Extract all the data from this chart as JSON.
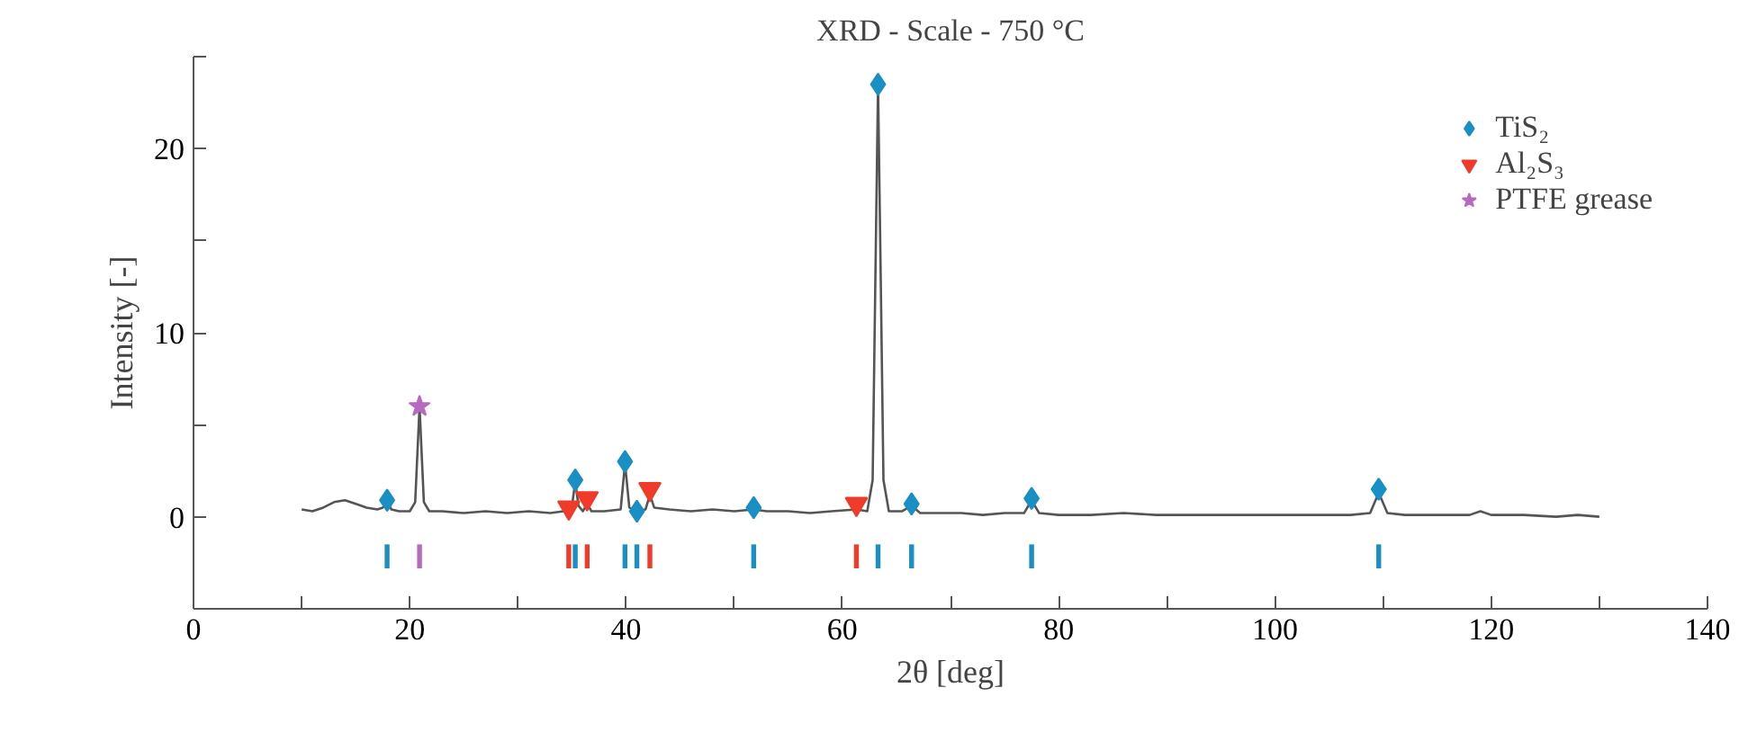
{
  "chart_data": {
    "type": "line",
    "title": "XRD - Scale - 750 °C",
    "xlabel": "2θ [deg]",
    "ylabel": "Intensity [-]",
    "xlim": [
      0,
      140
    ],
    "ylim": [
      -5,
      25
    ],
    "xticks": [
      0,
      {
        "value": 10,
        "label": null
      },
      20,
      {
        "value": 30,
        "label": null
      },
      40,
      {
        "value": 50,
        "label": null
      },
      60,
      {
        "value": 70,
        "label": null
      },
      80,
      {
        "value": 90,
        "label": null
      },
      100,
      {
        "value": 110,
        "label": null
      },
      120,
      {
        "value": 130,
        "label": null
      },
      140
    ],
    "yticks": [
      {
        "value": -5,
        "label": null
      },
      0,
      {
        "value": 5,
        "label": null
      },
      10,
      {
        "value": 15,
        "label": null
      },
      20,
      {
        "value": 25,
        "label": null
      }
    ],
    "grid": false,
    "legend": "top right",
    "series": [
      {
        "color": "#555555",
        "x": [
          10,
          11,
          12,
          13,
          14,
          15,
          16,
          17,
          17.5,
          17.9,
          18.3,
          19,
          20,
          20.5,
          20.9,
          21.3,
          21.8,
          23,
          25,
          27,
          29,
          31,
          33,
          34.2,
          34.7,
          35.0,
          35.3,
          35.6,
          36,
          36.4,
          36.8,
          38,
          39.5,
          39.9,
          40.3,
          41.0,
          41.8,
          42.2,
          42.6,
          44,
          46,
          48,
          50,
          51.8,
          53,
          55,
          57,
          59,
          61.3,
          62.3,
          62.8,
          63.1,
          63.3,
          63.5,
          63.8,
          64.3,
          65.5,
          66.4,
          67.2,
          69,
          71,
          73,
          75,
          76.8,
          77.5,
          78.2,
          80,
          83,
          86,
          89,
          92,
          95,
          98,
          101,
          104,
          107,
          108.8,
          109.6,
          110.4,
          112,
          115,
          118,
          119,
          120,
          123,
          126,
          128,
          130
        ],
        "values": [
          0.4,
          0.3,
          0.5,
          0.8,
          0.9,
          0.7,
          0.5,
          0.4,
          0.5,
          0.8,
          0.4,
          0.3,
          0.3,
          0.8,
          6.0,
          0.8,
          0.3,
          0.3,
          0.2,
          0.3,
          0.2,
          0.3,
          0.2,
          0.3,
          0.2,
          0.6,
          1.9,
          0.6,
          0.3,
          0.7,
          0.3,
          0.3,
          0.4,
          2.9,
          0.5,
          0.3,
          0.4,
          1.2,
          0.5,
          0.4,
          0.3,
          0.4,
          0.3,
          0.4,
          0.3,
          0.3,
          0.2,
          0.3,
          0.4,
          0.3,
          2.0,
          15.0,
          23.5,
          15.0,
          2.0,
          0.3,
          0.3,
          0.6,
          0.2,
          0.2,
          0.2,
          0.1,
          0.2,
          0.2,
          0.9,
          0.2,
          0.1,
          0.1,
          0.2,
          0.1,
          0.1,
          0.1,
          0.1,
          0.1,
          0.1,
          0.1,
          0.2,
          1.3,
          0.2,
          0.1,
          0.1,
          0.1,
          0.3,
          0.1,
          0.1,
          0.0,
          0.1,
          0.0
        ]
      },
      {
        "type": "scatter",
        "name": "TiS₂",
        "marker": "diamond",
        "color": "#1a8fc4",
        "x": [
          17.9,
          35.3,
          39.9,
          41.0,
          51.8,
          63.3,
          66.4,
          77.5,
          109.6
        ],
        "values": [
          0.9,
          2.0,
          3.0,
          0.3,
          0.5,
          23.5,
          0.7,
          1.0,
          1.5
        ]
      },
      {
        "type": "scatter",
        "name": "Al₂S₃",
        "marker": "triangle",
        "color": "#f03a2a",
        "x": [
          34.7,
          36.4,
          42.2,
          61.3
        ],
        "values": [
          0.5,
          1.0,
          1.5,
          0.7
        ]
      },
      {
        "type": "scatter",
        "name": "PTFE grease",
        "marker": "star",
        "color": "#b769c0",
        "x": [
          20.9
        ],
        "values": [
          6.0
        ]
      },
      {
        "type": "bar",
        "color": "#1a8fc4",
        "x": [
          17.9,
          35.3,
          39.9,
          41.0,
          51.8,
          63.3,
          66.4,
          77.5,
          109.6
        ],
        "base": [
          -2.8,
          -2.8,
          -2.8,
          -2.8,
          -2.8,
          -2.8,
          -2.8,
          -2.8,
          -2.8
        ],
        "values": [
          1.3,
          1.3,
          1.3,
          1.3,
          1.3,
          1.3,
          1.3,
          1.3,
          1.3
        ]
      },
      {
        "type": "bar",
        "color": "#f03a2a",
        "x": [
          34.7,
          36.4,
          42.2,
          61.3
        ],
        "base": [
          -2.8,
          -2.8,
          -2.8,
          -2.8
        ],
        "values": [
          1.3,
          1.3,
          1.3,
          1.3
        ]
      },
      {
        "type": "bar",
        "color": "#b769c0",
        "x": [
          20.9
        ],
        "base": [
          -2.8
        ],
        "values": [
          1.3
        ]
      }
    ]
  }
}
